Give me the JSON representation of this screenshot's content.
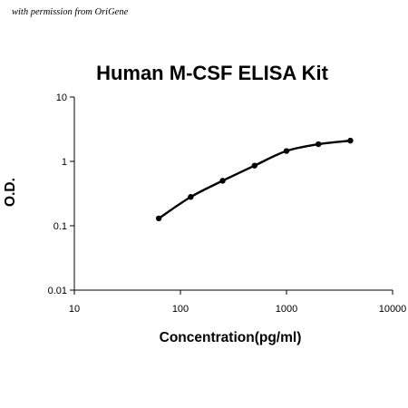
{
  "watermark": "with permission from OriGene",
  "chart_data": {
    "type": "line",
    "title": "Human M-CSF ELISA Kit",
    "xlabel": "Concentration(pg/ml)",
    "ylabel": "O.D.",
    "xscale": "log",
    "yscale": "log",
    "xlim": [
      10,
      10000
    ],
    "ylim": [
      0.01,
      10
    ],
    "x_ticks": [
      10,
      100,
      1000,
      10000
    ],
    "x_tick_labels": [
      "10",
      "100",
      "1000",
      "10000"
    ],
    "y_ticks": [
      10,
      1,
      0.1,
      0.01
    ],
    "y_tick_labels": [
      "10",
      "1",
      "0.1",
      "0.01"
    ],
    "grid": false,
    "legend": "none",
    "series": [
      {
        "x": [
          62.5,
          125,
          250,
          500,
          1000,
          2000,
          4000
        ],
        "y": [
          0.13,
          0.28,
          0.5,
          0.86,
          1.45,
          1.85,
          2.1
        ],
        "color": "#000000",
        "marker": "circle"
      }
    ]
  }
}
